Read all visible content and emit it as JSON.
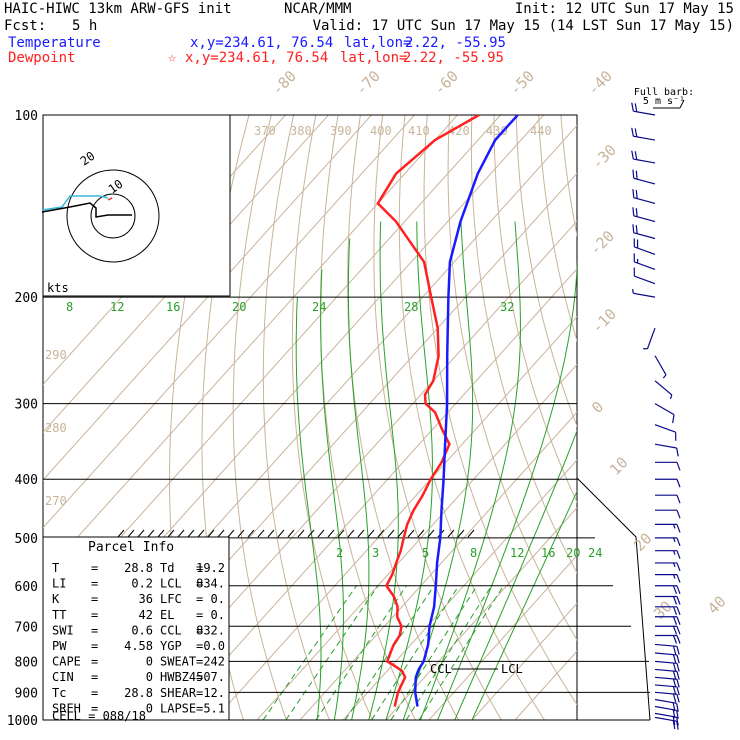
{
  "header": {
    "model": "HAIC-HIWC 13km ARW-GFS init",
    "org": "NCAR/MMM",
    "init": "Init: 12 UTC Sun 17 May 15",
    "fcst_label": "Fcst:",
    "fcst_value": "5 h",
    "valid": "Valid: 17 UTC Sun 17 May 15 (14 LST Sun 17 May 15)"
  },
  "legend": {
    "temperature": {
      "label": "Temperature",
      "xy": "x,y=234.61, 76.54",
      "latlon_label": "lat,lon=",
      "latlon": "2.22, -55.95",
      "color": "#1a1aff"
    },
    "dewpoint": {
      "label": "Dewpoint",
      "star": "☆",
      "xy": "x,y=234.61, 76.54",
      "latlon_label": "lat,lon=",
      "latlon": "2.22, -55.95",
      "color": "#ff2020"
    }
  },
  "barb_legend": {
    "line1": "Full barb:",
    "line2": "5 m s⁻¹"
  },
  "hodograph": {
    "units_label": "kts",
    "ring_labels": [
      "20",
      "10"
    ]
  },
  "colors": {
    "isotherm": "#c8b49a",
    "dry_adiabat": "#c8b49a",
    "moist_adiabat": "#2aa02a",
    "mixing_ratio": "#2aa02a",
    "isobar": "#000000",
    "temperature": "#1a1aff",
    "dewpoint": "#ff2020",
    "wind_barb": "#0a0a8a",
    "parcel": "#000000"
  },
  "parcel_info": {
    "title": "Parcel Info",
    "rows": [
      [
        "T",
        "=",
        "28.8",
        "Td",
        "=",
        "19.2"
      ],
      [
        "LI",
        "=",
        "0.2",
        "LCL",
        "=",
        "834."
      ],
      [
        "K",
        "=",
        "36",
        "LFC",
        "=",
        "0."
      ],
      [
        "TT",
        "=",
        "42",
        "EL",
        "=",
        "0."
      ],
      [
        "SWI",
        "=",
        "0.6",
        "CCL",
        "=",
        "832."
      ],
      [
        "PW",
        "=",
        "4.58",
        "YGP",
        "=",
        "0.0"
      ],
      [
        "CAPE",
        "=",
        "0",
        "SWEAT",
        "=",
        "242"
      ],
      [
        "CIN",
        "=",
        "0",
        "HWBZ",
        "=",
        "4507."
      ],
      [
        "Tc",
        "=",
        "28.8",
        "SHEAR",
        "=",
        "12."
      ],
      [
        "SREH",
        "=",
        "0",
        "LAPSE",
        "=",
        "5.1"
      ]
    ],
    "cell": "CELL = 088/18"
  },
  "chart_data": {
    "type": "line",
    "diagram": "skew-T log-p",
    "y_axis": {
      "scale": "log",
      "unit": "hPa",
      "range": [
        1000,
        100
      ],
      "ticks": [
        "100",
        "200",
        "300",
        "400",
        "500",
        "600",
        "700",
        "800",
        "900",
        "1000"
      ]
    },
    "isotherm_labels": [
      "-80",
      "-70",
      "-60",
      "-50",
      "-40",
      "-30",
      "-20",
      "-10",
      "0",
      "10",
      "20",
      "30",
      "40"
    ],
    "theta_labels": [
      "370",
      "380",
      "390",
      "400",
      "410",
      "420",
      "430",
      "440",
      "290",
      "280",
      "270"
    ],
    "moist_adiabat_labels": [
      "8",
      "12",
      "16",
      "20",
      "24",
      "28",
      "32"
    ],
    "mixing_ratio_labels": [
      "2",
      "3",
      "5",
      "8",
      "12",
      "16",
      "20",
      "24"
    ],
    "lcl_label": "LCL",
    "ccl_label": "CCL",
    "series": [
      {
        "name": "Temperature",
        "pressure": [
          950,
          900,
          850,
          825,
          800,
          750,
          700,
          650,
          600,
          550,
          500,
          450,
          400,
          350,
          300,
          250,
          200,
          175,
          150,
          125,
          110,
          100
        ],
        "values": [
          24.5,
          21,
          18,
          17,
          16.5,
          14,
          10.5,
          7.5,
          3.5,
          -1,
          -5.5,
          -11,
          -17,
          -24,
          -32,
          -42,
          -54,
          -61,
          -67,
          -73,
          -76,
          -76
        ]
      },
      {
        "name": "Dewpoint",
        "pressure": [
          950,
          900,
          850,
          830,
          810,
          800,
          775,
          750,
          725,
          700,
          675,
          650,
          625,
          600,
          575,
          550,
          525,
          500,
          475,
          450,
          425,
          400,
          375,
          350,
          330,
          310,
          300,
          290,
          275,
          250,
          225,
          200,
          175,
          150,
          140,
          125,
          110,
          100
        ],
        "values": [
          19.2,
          17,
          15.5,
          13.5,
          10,
          8,
          7,
          6,
          5.5,
          4,
          1,
          -1,
          -4,
          -8,
          -9,
          -10.5,
          -12,
          -14,
          -16,
          -17.5,
          -18.5,
          -20,
          -21,
          -23,
          -28,
          -33,
          -37,
          -39,
          -40,
          -44,
          -50,
          -58,
          -67,
          -82,
          -90,
          -92,
          -90,
          -85
        ]
      }
    ],
    "wind_barbs": {
      "unit": "m/s",
      "pressure": [
        990,
        975,
        950,
        925,
        900,
        875,
        850,
        825,
        800,
        775,
        750,
        725,
        700,
        675,
        650,
        625,
        600,
        575,
        550,
        525,
        500,
        475,
        450,
        425,
        400,
        375,
        350,
        325,
        300,
        275,
        250,
        225,
        200,
        190,
        180,
        170,
        160,
        150,
        140,
        130,
        120,
        110,
        100
      ],
      "direction_deg": [
        100,
        100,
        100,
        100,
        95,
        95,
        95,
        95,
        95,
        95,
        95,
        90,
        90,
        90,
        90,
        90,
        90,
        90,
        90,
        90,
        90,
        90,
        90,
        90,
        90,
        90,
        100,
        110,
        120,
        130,
        150,
        200,
        280,
        290,
        290,
        290,
        285,
        285,
        285,
        285,
        280,
        280,
        280
      ],
      "speed": [
        10,
        10,
        12,
        12,
        12,
        12,
        12,
        12,
        12,
        11,
        11,
        10,
        10,
        10,
        10,
        10,
        10,
        9,
        9,
        8,
        8,
        8,
        7,
        7,
        6,
        6,
        6,
        5,
        5,
        4,
        3,
        3,
        3,
        6,
        8,
        10,
        10,
        12,
        12,
        12,
        12,
        12,
        12
      ]
    }
  }
}
